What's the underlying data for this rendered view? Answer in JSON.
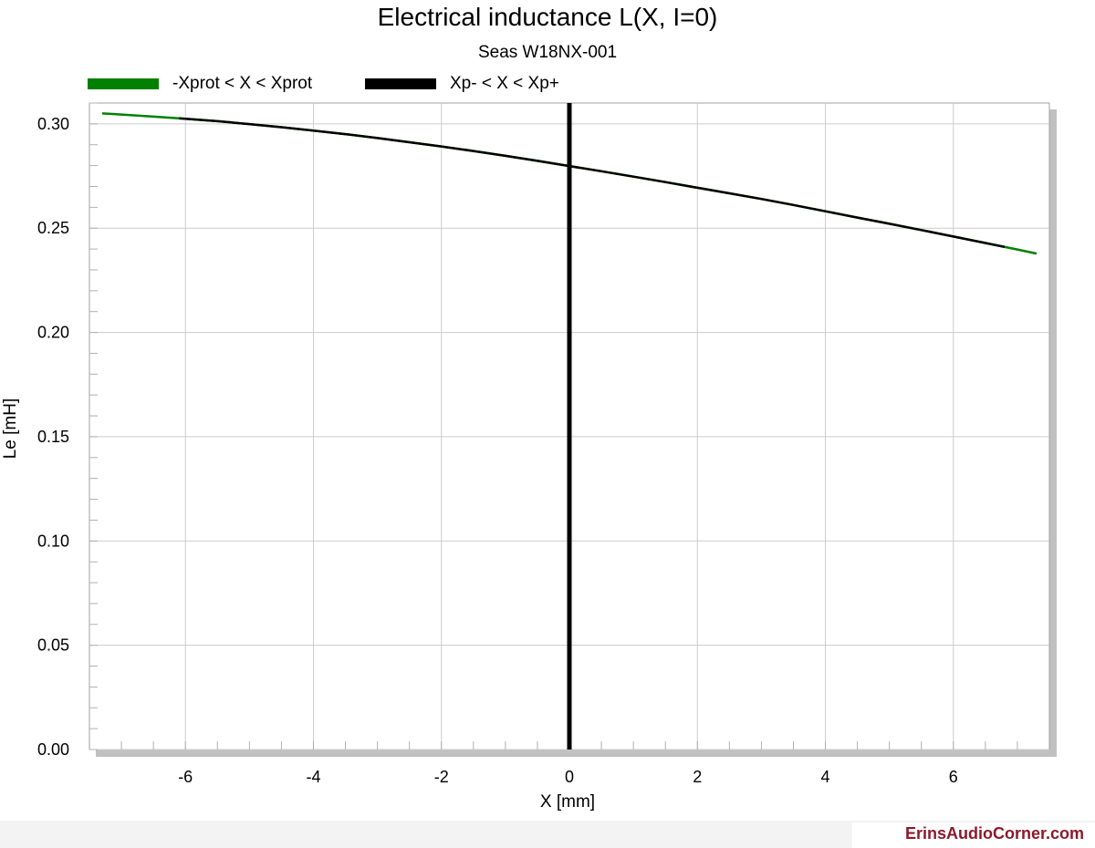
{
  "chart_data": {
    "type": "line",
    "title": "Electrical inductance L(X, I=0)",
    "subtitle": "Seas W18NX-001",
    "xlabel": "X [mm]",
    "ylabel": "Le [mH]",
    "xlim": [
      -7.5,
      7.5
    ],
    "ylim": [
      0.0,
      0.31
    ],
    "xticks": [
      -6,
      -4,
      -2,
      0,
      2,
      4,
      6
    ],
    "yticks": [
      0.0,
      0.05,
      0.1,
      0.15,
      0.2,
      0.25,
      0.3
    ],
    "grid": true,
    "legend_position": "top",
    "series": [
      {
        "name": "-Xprot < X < Xprot",
        "color": "#008000",
        "x": [
          -7.3,
          -7.0,
          -6.5,
          -6.0,
          -5.5,
          -5.0,
          -4.5,
          -4.0,
          -3.5,
          -3.0,
          -2.5,
          -2.0,
          -1.5,
          -1.0,
          -0.5,
          0.0,
          0.5,
          1.0,
          1.5,
          2.0,
          2.5,
          3.0,
          3.5,
          4.0,
          4.5,
          5.0,
          5.5,
          6.0,
          6.5,
          7.0,
          7.3
        ],
        "y": [
          0.305,
          0.3045,
          0.3035,
          0.3025,
          0.3013,
          0.2999,
          0.2984,
          0.2968,
          0.2951,
          0.2932,
          0.2912,
          0.2892,
          0.287,
          0.2847,
          0.2823,
          0.2798,
          0.2773,
          0.2747,
          0.2721,
          0.2694,
          0.2667,
          0.264,
          0.2611,
          0.2581,
          0.2551,
          0.2521,
          0.2491,
          0.246,
          0.2429,
          0.2398,
          0.2378
        ]
      },
      {
        "name": "Xp- < X < Xp+",
        "color": "#000000",
        "x": [
          -6.1,
          -5.5,
          -5.0,
          -4.5,
          -4.0,
          -3.5,
          -3.0,
          -2.5,
          -2.0,
          -1.5,
          -1.0,
          -0.5,
          0.0,
          0.5,
          1.0,
          1.5,
          2.0,
          2.5,
          3.0,
          3.5,
          4.0,
          4.5,
          5.0,
          5.5,
          6.0,
          6.5,
          6.8
        ],
        "y": [
          0.3027,
          0.3013,
          0.2999,
          0.2984,
          0.2968,
          0.2951,
          0.2932,
          0.2912,
          0.2892,
          0.287,
          0.2847,
          0.2823,
          0.2798,
          0.2773,
          0.2747,
          0.2721,
          0.2694,
          0.2667,
          0.264,
          0.2611,
          0.2581,
          0.2551,
          0.2521,
          0.2491,
          0.246,
          0.2429,
          0.241
        ]
      }
    ],
    "vline": {
      "x": 0,
      "color": "#000000"
    }
  },
  "watermark": "ErinsAudioCorner.com"
}
